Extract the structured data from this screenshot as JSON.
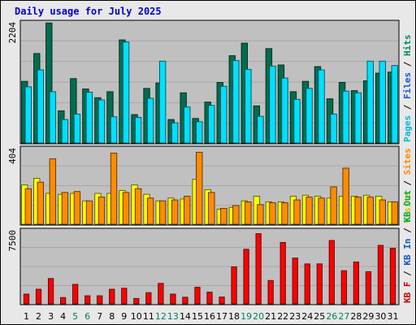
{
  "chart_data": {
    "type": "bar",
    "title": "Daily usage for July 2025",
    "x_ticks": [
      "1",
      "2",
      "3",
      "4",
      "5",
      "6",
      "7",
      "8",
      "9",
      "10",
      "11",
      "12",
      "13",
      "14",
      "15",
      "16",
      "17",
      "18",
      "19",
      "20",
      "21",
      "22",
      "23",
      "24",
      "25",
      "26",
      "27",
      "28",
      "29",
      "30",
      "31"
    ],
    "weekend_days": [
      5,
      6,
      12,
      13,
      19,
      20,
      26,
      27
    ],
    "panels": [
      {
        "id": "hits_files_pages",
        "max_label": "2204",
        "ymax": 2204,
        "right_labels": [
          {
            "text": "Pages",
            "color": "#00b8d8"
          },
          {
            "text": " / ",
            "color": "#000000"
          },
          {
            "text": "Files",
            "color": "#1155cc"
          },
          {
            "text": " / ",
            "color": "#000000"
          },
          {
            "text": "Hits",
            "color": "#008866"
          }
        ],
        "series": [
          {
            "name": "Hits",
            "color": "#006c50",
            "values": [
              1130,
              1640,
              2200,
              590,
              1180,
              990,
              830,
              940,
              1890,
              520,
              1000,
              1100,
              430,
              920,
              450,
              750,
              1110,
              1600,
              1830,
              680,
              1730,
              1430,
              940,
              1130,
              1400,
              810,
              1110,
              960,
              1140,
              1280,
              1300
            ]
          },
          {
            "name": "Files",
            "color": "#00e0ff",
            "values": [
              1030,
              1340,
              940,
              430,
              530,
              930,
              790,
              480,
              1850,
              470,
              820,
              1500,
              370,
              660,
              390,
              690,
              1040,
              1510,
              1350,
              490,
              1410,
              1190,
              800,
              1000,
              1340,
              530,
              950,
              920,
              1500,
              1500,
              1420
            ]
          }
        ]
      },
      {
        "id": "visits_sites",
        "max_label": "404",
        "ymax": 404,
        "right_labels": [
          {
            "text": "Visits",
            "color": "#cccc00"
          },
          {
            "text": " / ",
            "color": "#000000"
          },
          {
            "text": "Sites",
            "color": "#ff8800"
          }
        ],
        "series": [
          {
            "name": "Visits",
            "color": "#ffff00",
            "values": [
              210,
              245,
              165,
              160,
              165,
              125,
              165,
              165,
              180,
              210,
              160,
              125,
              140,
              135,
              240,
              185,
              80,
              90,
              125,
              150,
              120,
              120,
              150,
              155,
              150,
              140,
              150,
              150,
              155,
              150,
              120
            ]
          },
          {
            "name": "Sites",
            "color": "#ff8c00",
            "values": [
              190,
              225,
              350,
              170,
              175,
              125,
              145,
              380,
              170,
              190,
              140,
              125,
              130,
              150,
              385,
              170,
              85,
              100,
              120,
              105,
              115,
              115,
              130,
              145,
              140,
              200,
              300,
              145,
              145,
              130,
              120
            ]
          }
        ]
      },
      {
        "id": "kb",
        "max_label": "7500",
        "ymax": 7500,
        "right_labels": [
          {
            "text": "KB F",
            "color": "#cc0000"
          },
          {
            "text": " / ",
            "color": "#000000"
          },
          {
            "text": "KB In",
            "color": "#1155cc"
          },
          {
            "text": " / ",
            "color": "#000000"
          },
          {
            "text": "KB Out",
            "color": "#00aa44"
          }
        ],
        "series": [
          {
            "name": "KB F",
            "color": "#ff0000",
            "values": [
              1000,
              1500,
              2600,
              650,
              2000,
              830,
              830,
              1500,
              1600,
              550,
              1150,
              2100,
              1000,
              680,
              1700,
              1200,
              700,
              3800,
              5600,
              7200,
              2400,
              6300,
              4700,
              4100,
              4100,
              6500,
              3400,
              4300,
              3300,
              6000,
              5700
            ]
          }
        ]
      }
    ]
  }
}
